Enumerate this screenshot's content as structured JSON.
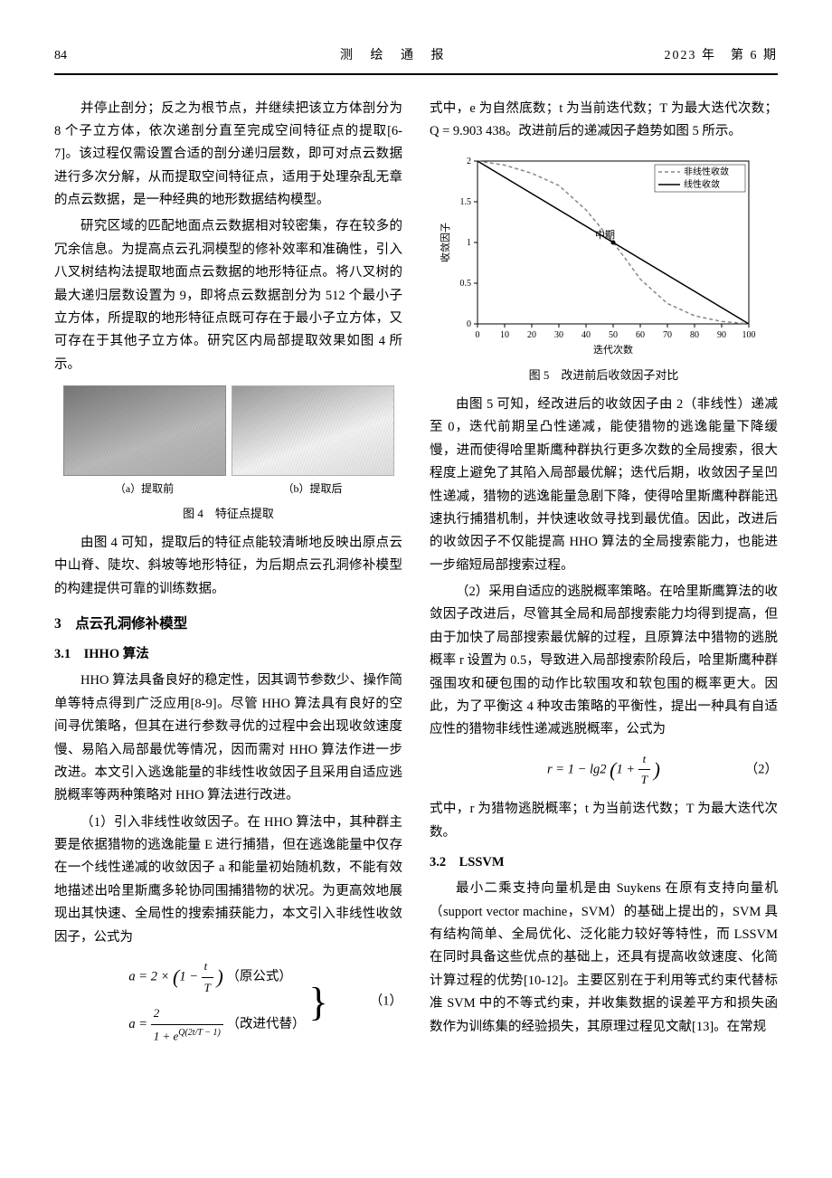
{
  "header": {
    "page_number": "84",
    "journal_title": "测 绘 通 报",
    "issue": "2023 年　第 6 期"
  },
  "left_col": {
    "p1": "并停止剖分；反之为根节点，并继续把该立方体剖分为 8 个子立方体，依次递剖分直至完成空间特征点的提取[6-7]。该过程仅需设置合适的剖分递归层数，即可对点云数据进行多次分解，从而提取空间特征点，适用于处理杂乱无章的点云数据，是一种经典的地形数据结构模型。",
    "p2": "研究区域的匹配地面点云数据相对较密集，存在较多的冗余信息。为提高点云孔洞模型的修补效率和准确性，引入八叉树结构法提取地面点云数据的地形特征点。将八叉树的最大递归层数设置为 9，即将点云数据剖分为 512 个最小子立方体，所提取的地形特征点既可存在于最小子立方体，又可存在于其他子立方体。研究区内局部提取效果如图 4 所示。",
    "fig4": {
      "sub_a": "（a）提取前",
      "sub_b": "（b）提取后",
      "caption": "图 4　特征点提取"
    },
    "p3": "由图 4 可知，提取后的特征点能较清晰地反映出原点云中山脊、陡坎、斜坡等地形特征，为后期点云孔洞修补模型的构建提供可靠的训练数据。",
    "section3": "3　点云孔洞修补模型",
    "sec31": "3.1　IHHO 算法",
    "p4": "HHO 算法具备良好的稳定性，因其调节参数少、操作简单等特点得到广泛应用[8-9]。尽管 HHO 算法具有良好的空间寻优策略，但其在进行参数寻优的过程中会出现收敛速度慢、易陷入局部最优等情况，因而需对 HHO 算法作进一步改进。本文引入逃逸能量的非线性收敛因子且采用自适应逃脱概率等两种策略对 HHO 算法进行改进。",
    "p5": "（1）引入非线性收敛因子。在 HHO 算法中，其种群主要是依据猎物的逃逸能量 E 进行捕猎，但在逃逸能量中仅存在一个线性递减的收敛因子 a 和能量初始随机数，不能有效地描述出哈里斯鹰多轮协同围捕猎物的状况。为更高效地展现出其快速、全局性的搜索捕获能力，本文引入非线性收敛因子，公式为",
    "eq1": {
      "line1_pre": "a = 2 ×",
      "line1_frac_n": "t",
      "line1_frac_d": "T",
      "line1_post": "（原公式）",
      "line2_pre": "a =",
      "line2_frac_n": "2",
      "line2_frac_d_pre": "1 + e",
      "line2_exp": "Q(2t/T − 1)",
      "line2_post": "（改进代替）",
      "num": "（1）"
    }
  },
  "right_col": {
    "p1": "式中，e 为自然底数；t 为当前迭代数；T 为最大迭代次数；Q = 9.903 438。改进前后的递减因子趋势如图 5 所示。",
    "fig5": {
      "caption": "图 5　改进前后收敛因子对比",
      "chart": {
        "type": "line",
        "xlabel": "迭代次数",
        "ylabel": "收敛因子",
        "xlim": [
          0,
          100
        ],
        "ylim": [
          0,
          2
        ],
        "xticks": [
          0,
          10,
          20,
          30,
          40,
          50,
          60,
          70,
          80,
          90,
          100
        ],
        "yticks": [
          0,
          0.5,
          1,
          1.5,
          2
        ],
        "annotation": "中期",
        "legend": [
          "非线性收敛",
          "线性收敛"
        ],
        "series": [
          {
            "name": "非线性收敛",
            "color": "#888888",
            "dash": "4 3",
            "x": [
              0,
              10,
              20,
              30,
              40,
              45,
              50,
              55,
              60,
              70,
              80,
              90,
              100
            ],
            "y": [
              2,
              1.95,
              1.85,
              1.7,
              1.4,
              1.2,
              1.0,
              0.78,
              0.55,
              0.25,
              0.1,
              0.03,
              0
            ]
          },
          {
            "name": "线性收敛",
            "color": "#000000",
            "dash": "none",
            "x": [
              0,
              100
            ],
            "y": [
              2,
              0
            ]
          }
        ],
        "background_color": "#ffffff",
        "grid_color": "none",
        "axis_color": "#000000",
        "label_fontsize": 11,
        "tick_fontsize": 10
      }
    },
    "p2": "由图 5 可知，经改进后的收敛因子由 2（非线性）递减至 0，迭代前期呈凸性递减，能使猎物的逃逸能量下降缓慢，进而使得哈里斯鹰种群执行更多次数的全局搜索，很大程度上避免了其陷入局部最优解；迭代后期，收敛因子呈凹性递减，猎物的逃逸能量急剧下降，使得哈里斯鹰种群能迅速执行捕猎机制，并快速收敛寻找到最优值。因此，改进后的收敛因子不仅能提高 HHO 算法的全局搜索能力，也能进一步缩短局部搜索过程。",
    "p3": "（2）采用自适应的逃脱概率策略。在哈里斯鹰算法的收敛因子改进后，尽管其全局和局部搜索能力均得到提高，但由于加快了局部搜索最优解的过程，且原算法中猎物的逃脱概率 r 设置为 0.5，导致进入局部搜索阶段后，哈里斯鹰种群强围攻和硬包围的动作比软围攻和软包围的概率更大。因此，为了平衡这 4 种攻击策略的平衡性，提出一种具有自适应性的猎物非线性递减逃脱概率，公式为",
    "eq2": {
      "pre": "r = 1 − lg2",
      "frac_n": "t",
      "frac_d": "T",
      "num": "（2）"
    },
    "p4": "式中，r 为猎物逃脱概率；t 为当前迭代数；T 为最大迭代次数。",
    "sec32": "3.2　LSSVM",
    "p5": "最小二乘支持向量机是由 Suykens 在原有支持向量机（support vector machine，SVM）的基础上提出的，SVM 具有结构简单、全局优化、泛化能力较好等特性，而 LSSVM 在同时具备这些优点的基础上，还具有提高收敛速度、化简计算过程的优势[10-12]。主要区别在于利用等式约束代替标准 SVM 中的不等式约束，并收集数据的误差平方和损失函数作为训练集的经验损失，其原理过程见文献[13]。在常规"
  }
}
